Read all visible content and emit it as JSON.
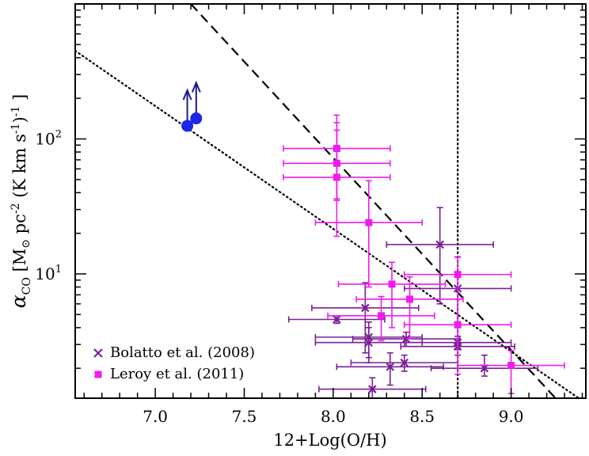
{
  "chart_data": {
    "type": "scatter",
    "title": "",
    "xlabel": "12+Log(O/H)",
    "ylabel": "α_CO [M_⊙ pc^-2 (K km s^-1)^-1]",
    "ylabel_parts": {
      "alpha": "α",
      "alpha_sub": "CO",
      "open": " [M",
      "odot": "⊙",
      "pc": " pc",
      "pc_exp": "-2",
      "kkms": " (K km s",
      "s_exp": "-1",
      "close": ")",
      "close_exp": "-1",
      "bracket": " ]"
    },
    "xlim": [
      6.55,
      9.42
    ],
    "ylim": [
      1.2,
      1000
    ],
    "yscale": "log",
    "xticks": [
      {
        "value": 7.0,
        "label": "7.0"
      },
      {
        "value": 7.5,
        "label": "7.5"
      },
      {
        "value": 8.0,
        "label": "8.0"
      },
      {
        "value": 8.5,
        "label": "8.5"
      },
      {
        "value": 9.0,
        "label": "9.0"
      }
    ],
    "yticks": [
      {
        "value": 10,
        "base": "10",
        "exp": "1"
      },
      {
        "value": 100,
        "base": "10",
        "exp": "2"
      }
    ],
    "lines": [
      {
        "name": "dashed-relation",
        "style": "dashed",
        "points": [
          [
            7.2,
            1000
          ],
          [
            9.25,
            1.2
          ]
        ]
      },
      {
        "name": "dotted-relation",
        "style": "dotted",
        "points": [
          [
            6.55,
            450
          ],
          [
            9.38,
            1.2
          ]
        ]
      },
      {
        "name": "solar-metallicity",
        "style": "dotted",
        "vertical_x": 8.7
      }
    ],
    "series": [
      {
        "name": "Bolatto et al. (2008)",
        "marker": "x",
        "color": "#7a2096",
        "points": [
          {
            "x": 8.6,
            "y": 16.5,
            "xerr": [
              0.3,
              0.3
            ],
            "yerr": [
              10.5,
              14.5
            ]
          },
          {
            "x": 8.7,
            "y": 7.8,
            "xerr": [
              0.3,
              0.3
            ],
            "yerr": [
              4.8,
              5.5
            ]
          },
          {
            "x": 8.18,
            "y": 5.6,
            "xerr": [
              0.3,
              0.3
            ],
            "yerr": [
              3.0,
              3.0
            ]
          },
          {
            "x": 8.02,
            "y": 4.6,
            "xerr": [
              0.27,
              0.27
            ],
            "yerr": [
              0.3,
              0.3
            ]
          },
          {
            "x": 8.2,
            "y": 3.4,
            "xerr": [
              0.3,
              0.3
            ],
            "yerr": [
              1.0,
              1.0
            ]
          },
          {
            "x": 8.41,
            "y": 3.3,
            "xerr": [
              0.3,
              0.3
            ],
            "yerr": [
              0.4,
              0.4
            ]
          },
          {
            "x": 8.7,
            "y": 3.1,
            "xerr": [
              0.3,
              0.3
            ],
            "yerr": [
              0.35,
              0.35
            ]
          },
          {
            "x": 8.7,
            "y": 2.9,
            "xerr": [
              0.32,
              0.32
            ],
            "yerr": [
              0.4,
              0.4
            ]
          },
          {
            "x": 8.2,
            "y": 3.1,
            "xerr": [
              0.3,
              0.3
            ],
            "yerr": [
              0.9,
              0.9
            ]
          },
          {
            "x": 8.4,
            "y": 2.2,
            "xerr": [
              0.3,
              0.3
            ],
            "yerr": [
              0.3,
              0.3
            ]
          },
          {
            "x": 8.32,
            "y": 2.05,
            "xerr": [
              0.3,
              0.3
            ],
            "yerr": [
              0.55,
              0.55
            ]
          },
          {
            "x": 8.85,
            "y": 2.0,
            "xerr": [
              0.3,
              0.3
            ],
            "yerr": [
              0.25,
              0.5
            ]
          },
          {
            "x": 8.22,
            "y": 1.4,
            "xerr": [
              0.3,
              0.3
            ],
            "yerr": [
              0.2,
              0.3
            ]
          }
        ]
      },
      {
        "name": "Leroy et al. (2011)",
        "marker": "square",
        "color": "#ee1cee",
        "points": [
          {
            "x": 8.02,
            "y": 85,
            "xerr": [
              0.3,
              0.3
            ],
            "yerr": [
              50,
              65
            ]
          },
          {
            "x": 8.02,
            "y": 66,
            "xerr": [
              0.3,
              0.3
            ],
            "yerr": [
              30,
              50
            ]
          },
          {
            "x": 8.02,
            "y": 52,
            "xerr": [
              0.3,
              0.3
            ],
            "yerr": [
              33,
              80
            ]
          },
          {
            "x": 8.2,
            "y": 24,
            "xerr": [
              0.3,
              0.3
            ],
            "yerr": [
              16,
              25
            ]
          },
          {
            "x": 8.7,
            "y": 9.9,
            "xerr": [
              0.3,
              0.3
            ],
            "yerr": [
              5.5,
              3.5
            ]
          },
          {
            "x": 8.33,
            "y": 8.4,
            "xerr": [
              0.3,
              0.3
            ],
            "yerr": [
              4.4,
              3.8
            ]
          },
          {
            "x": 8.43,
            "y": 6.5,
            "xerr": [
              0.3,
              0.3
            ],
            "yerr": [
              3.2,
              3.0
            ]
          },
          {
            "x": 8.27,
            "y": 4.9,
            "xerr": [
              0.3,
              0.3
            ],
            "yerr": [
              1.7,
              1.9
            ]
          },
          {
            "x": 8.7,
            "y": 4.2,
            "xerr": [
              0.3,
              0.3
            ],
            "yerr": [
              2.4,
              2.3
            ]
          },
          {
            "x": 9.0,
            "y": 2.1,
            "xerr": [
              0.3,
              0.3
            ],
            "yerr": [
              0.8,
              0.6
            ]
          }
        ]
      },
      {
        "name": "Lower limits",
        "marker": "circle",
        "color": "#1c27e6",
        "arrow_color": "#1a1a8c",
        "lower_limit": true,
        "points": [
          {
            "x": 7.18,
            "y": 125
          },
          {
            "x": 7.23,
            "y": 142
          }
        ]
      }
    ],
    "legend": {
      "position": "bottom-left",
      "entries": [
        {
          "label": "Bolatto et al. (2008)",
          "marker": "x",
          "color": "#7a2096"
        },
        {
          "label": "Leroy et al. (2011)",
          "marker": "square",
          "color": "#ee1cee"
        }
      ]
    }
  }
}
